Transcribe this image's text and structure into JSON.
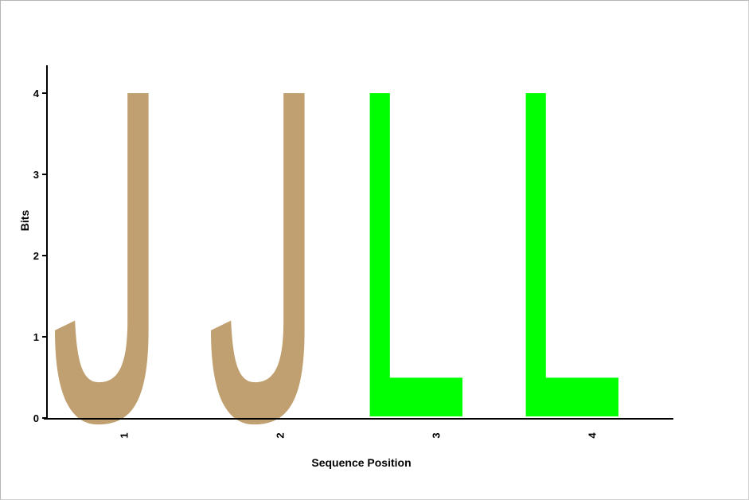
{
  "chart_data": {
    "type": "sequence-logo",
    "xlabel": "Sequence Position",
    "ylabel": "Bits",
    "ylim": [
      0,
      4
    ],
    "yticks": [
      "0",
      "1",
      "2",
      "3",
      "4"
    ],
    "positions": [
      {
        "label": "1",
        "letter": "J",
        "bits": 4,
        "color": "#c0a070"
      },
      {
        "label": "2",
        "letter": "J",
        "bits": 4,
        "color": "#c0a070"
      },
      {
        "label": "3",
        "letter": "L",
        "bits": 4,
        "color": "#00ff00"
      },
      {
        "label": "4",
        "letter": "L",
        "bits": 4,
        "color": "#00ff00"
      }
    ]
  }
}
